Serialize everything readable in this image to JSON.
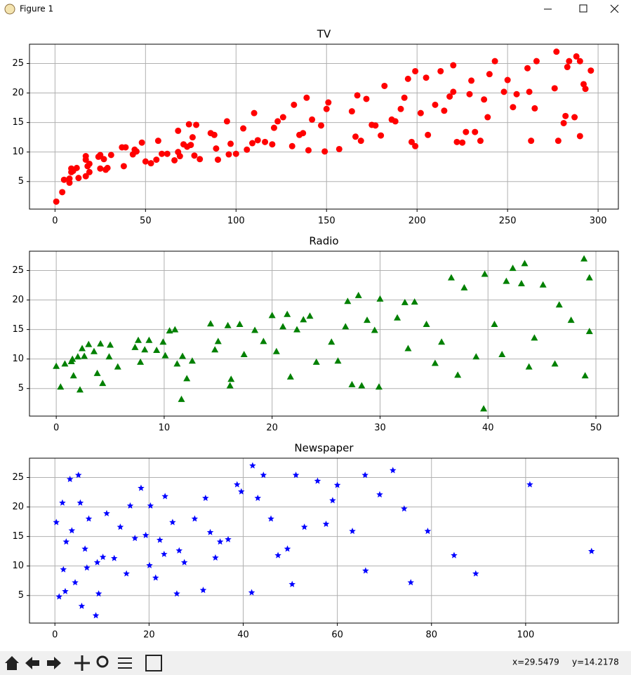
{
  "window": {
    "title": "Figure 1"
  },
  "chart_data": [
    {
      "type": "scatter",
      "title": "TV",
      "xlim": [
        -14.1,
        311.2
      ],
      "ylim": [
        0.33,
        28.27
      ],
      "xticks": [
        0,
        50,
        100,
        150,
        200,
        250,
        300
      ],
      "yticks": [
        5,
        10,
        15,
        20,
        25
      ],
      "grid": true,
      "series": [
        {
          "color": "#ff0000",
          "marker": "o",
          "x": [
            0.7,
            4,
            5,
            8,
            8,
            9,
            9,
            10,
            12,
            13,
            17,
            17,
            17,
            18,
            19,
            19,
            24,
            25,
            25,
            27,
            28,
            29,
            31,
            37,
            38,
            39,
            43,
            44,
            45,
            48,
            50,
            53,
            56,
            57,
            59,
            62,
            66,
            68,
            68,
            69,
            71,
            73,
            74,
            75,
            76,
            77,
            78,
            80,
            86,
            88,
            89,
            90,
            95,
            96,
            97,
            100,
            104,
            106,
            109,
            110,
            112,
            116,
            120,
            121,
            123,
            126,
            131,
            132,
            135,
            137,
            139,
            140,
            142,
            147,
            149,
            150,
            151,
            157,
            164,
            166,
            167,
            169,
            172,
            175,
            177,
            180,
            182,
            186,
            188,
            191,
            193,
            195,
            197,
            199,
            199,
            202,
            205,
            206,
            210,
            213,
            215,
            218,
            220,
            220,
            222,
            225,
            227,
            229,
            230,
            232,
            235,
            237,
            239,
            240,
            243,
            248,
            250,
            253,
            255,
            261,
            262,
            263,
            265,
            266,
            276,
            277,
            278,
            281,
            282,
            283,
            284,
            287,
            288,
            290,
            290,
            292,
            293,
            296
          ],
          "values": [
            1.6,
            3.2,
            5.3,
            5.5,
            4.8,
            6.6,
            7.2,
            6.8,
            7.3,
            5.6,
            5.9,
            8.7,
            9.3,
            7.6,
            8,
            6.6,
            9.2,
            7.2,
            9.5,
            8.8,
            7,
            7.3,
            9.5,
            10.8,
            7.6,
            10.8,
            9.6,
            10.4,
            10.1,
            11.6,
            8.4,
            8.1,
            8.7,
            11.9,
            9.7,
            9.7,
            8.6,
            13.6,
            10,
            9.3,
            11.3,
            10.9,
            14.7,
            11.2,
            12.5,
            9.4,
            14.6,
            8.8,
            13.2,
            12.9,
            10.6,
            8.7,
            15.2,
            9.6,
            11.4,
            9.7,
            14,
            10.4,
            11.5,
            16.6,
            12,
            11.7,
            11.3,
            14.1,
            15.2,
            15.9,
            11,
            18,
            12.9,
            13.2,
            19.2,
            10.3,
            15.5,
            14.5,
            10.1,
            17.3,
            18.4,
            10.5,
            16.9,
            12.6,
            19.6,
            11.9,
            19,
            14.6,
            14.5,
            12.8,
            21.2,
            15.5,
            15.2,
            17.3,
            19.2,
            22.4,
            11.7,
            23.7,
            11,
            16.6,
            22.6,
            12.9,
            18,
            23.7,
            17,
            19.4,
            24.7,
            20.2,
            11.7,
            11.6,
            13.4,
            19.8,
            22.1,
            13.4,
            11.9,
            18.9,
            15.9,
            23.2,
            25.4,
            20.2,
            22.2,
            17.6,
            19.8,
            24.2,
            20.2,
            11.9,
            17.4,
            25.4,
            20.8,
            27,
            11.9,
            14.9,
            16.1,
            24.4,
            25.4,
            15.9,
            26.2,
            25.4,
            12.7,
            21.5,
            20.7,
            23.8
          ]
        }
      ]
    },
    {
      "type": "scatter",
      "title": "Radio",
      "xlim": [
        -2.48,
        52.08
      ],
      "ylim": [
        0.33,
        28.27
      ],
      "xticks": [
        0,
        10,
        20,
        30,
        40,
        50
      ],
      "yticks": [
        5,
        10,
        15,
        20,
        25
      ],
      "grid": true,
      "series": [
        {
          "color": "#008000",
          "marker": "^",
          "x": [
            0,
            0.4,
            0.8,
            1.4,
            1.5,
            1.6,
            2,
            2.2,
            2.4,
            2.6,
            3,
            3.5,
            3.8,
            4.1,
            4.3,
            4.9,
            5,
            5.7,
            7.3,
            7.6,
            7.8,
            8.2,
            8.6,
            9.3,
            9.9,
            10.1,
            10.5,
            11,
            11.2,
            11.6,
            11.7,
            12.1,
            12.6,
            14.3,
            14.7,
            15,
            15.9,
            16.1,
            16.2,
            17,
            17.4,
            18.4,
            19.2,
            20,
            20.4,
            21,
            21.4,
            21.7,
            22.3,
            22.9,
            23.5,
            24.1,
            25.5,
            26.1,
            26.8,
            27,
            27.4,
            28,
            28.3,
            28.8,
            29.5,
            29.9,
            30,
            31.6,
            32.3,
            32.6,
            33.2,
            34.3,
            35.1,
            35.7,
            36.6,
            37.2,
            37.8,
            38.9,
            39.6,
            39.7,
            40.6,
            41.3,
            41.7,
            42.3,
            43.1,
            43.4,
            43.8,
            44.3,
            45.1,
            46.2,
            46.6,
            47.7,
            48.9,
            49,
            49.4,
            49.4
          ],
          "values": [
            8.8,
            5.3,
            9.2,
            9.6,
            10,
            7.2,
            10.4,
            4.8,
            11.8,
            10.5,
            12.5,
            11.3,
            7.6,
            12.6,
            5.9,
            10.4,
            12.4,
            8.7,
            12,
            13.2,
            9.5,
            11.6,
            13.2,
            11.5,
            12.9,
            10.6,
            14.8,
            15,
            9.2,
            3.2,
            10.5,
            6.7,
            9.7,
            16,
            11.6,
            13,
            15.7,
            5.5,
            6.6,
            15.9,
            10.8,
            14.9,
            13,
            17.4,
            11.3,
            15.5,
            17.6,
            7,
            15,
            16.7,
            17.3,
            9.5,
            12.9,
            9.7,
            15.5,
            19.8,
            5.7,
            20.8,
            5.5,
            16.6,
            14.9,
            5.3,
            20.2,
            17,
            19.6,
            11.8,
            19.7,
            15.9,
            9.3,
            12.9,
            23.8,
            7.3,
            22.1,
            10.4,
            1.6,
            24.4,
            15.9,
            10.8,
            23.2,
            25.4,
            22.8,
            26.2,
            8.7,
            13.6,
            22.6,
            9.2,
            19.2,
            16.6,
            27,
            7.2,
            23.8,
            14.7
          ]
        }
      ]
    },
    {
      "type": "scatter",
      "title": "Newspaper",
      "xlim": [
        -5.4,
        119.7
      ],
      "ylim": [
        0.33,
        28.27
      ],
      "xticks": [
        0,
        20,
        40,
        60,
        80,
        100
      ],
      "yticks": [
        5,
        10,
        15,
        20,
        25
      ],
      "grid": true,
      "series": [
        {
          "color": "#0000ff",
          "marker": "*",
          "x": [
            0.3,
            0.9,
            1.6,
            1.8,
            2.2,
            2.4,
            3.2,
            3.6,
            4.3,
            5,
            5.4,
            5.7,
            6.4,
            6.8,
            7.2,
            8.7,
            9,
            9.3,
            10.2,
            11,
            12.6,
            13.9,
            15.2,
            16,
            17,
            18.3,
            19.3,
            20.1,
            20.3,
            21.4,
            22.3,
            23.2,
            23.4,
            25,
            25.9,
            26.4,
            27.5,
            29.7,
            31.5,
            32,
            33,
            34.1,
            35.1,
            36.8,
            38.7,
            39.6,
            41.8,
            42,
            43.1,
            44.3,
            45.9,
            47.4,
            49.4,
            50.4,
            51.2,
            53,
            55.8,
            57.6,
            59,
            60,
            63.2,
            65.9,
            66,
            69,
            71.8,
            74.2,
            75.6,
            79.2,
            84.8,
            89.4,
            100.9,
            114
          ],
          "values": [
            17.4,
            4.8,
            20.7,
            9.4,
            5.7,
            14.1,
            24.7,
            16,
            7.2,
            25.4,
            20.7,
            3.2,
            12.9,
            9.7,
            18,
            1.6,
            10.6,
            5.3,
            11.5,
            18.9,
            11.3,
            16.6,
            8.7,
            20.2,
            14.7,
            23.2,
            15.2,
            10.1,
            20.2,
            8,
            14.4,
            12,
            21.8,
            17.4,
            5.3,
            12.6,
            10.6,
            18,
            5.9,
            21.5,
            15.7,
            11.4,
            14.1,
            14.5,
            23.8,
            22.6,
            5.5,
            27,
            21.5,
            25.4,
            18,
            11.8,
            12.9,
            6.9,
            25.4,
            16.6,
            24.4,
            17.1,
            21.1,
            23.7,
            15.9,
            25.4,
            9.2,
            22.1,
            26.2,
            19.7,
            7.2,
            15.9,
            11.8,
            8.7,
            23.8,
            12.5
          ]
        }
      ]
    }
  ],
  "status": {
    "x": "x=29.5479",
    "y": "y=14.2178"
  }
}
